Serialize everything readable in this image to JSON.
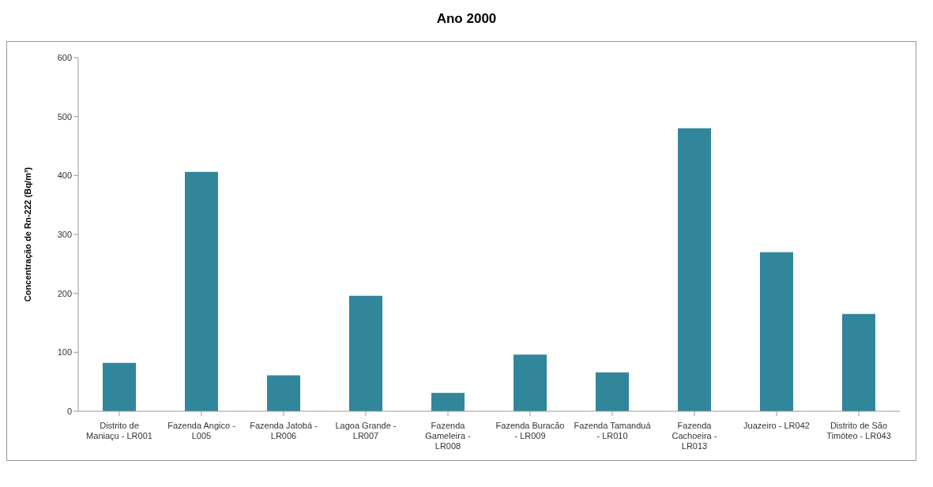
{
  "chart_data": {
    "type": "bar",
    "title": "Ano 2000",
    "ylabel": "Concentração de Rn-222 (Bq/m³)",
    "categories": [
      "Distrito de Maniaçu - LR001",
      "Fazenda Angico - L005",
      "Fazenda Jatobá - LR006",
      "Lagoa Grande - LR007",
      "Fazenda Gameleira - LR008",
      "Fazenda Buracão - LR009",
      "Fazenda Tamanduá - LR010",
      "Fazenda Cachoeira - LR013",
      "Juazeiro - LR042",
      "Distrito de São Timóteo - LR043"
    ],
    "values": [
      82,
      406,
      61,
      196,
      31,
      96,
      66,
      480,
      270,
      165
    ],
    "color": "#31869b",
    "ylim": [
      0,
      600
    ],
    "yticks": [
      0,
      100,
      200,
      300,
      400,
      500,
      600
    ],
    "grid": false,
    "legend": false
  }
}
